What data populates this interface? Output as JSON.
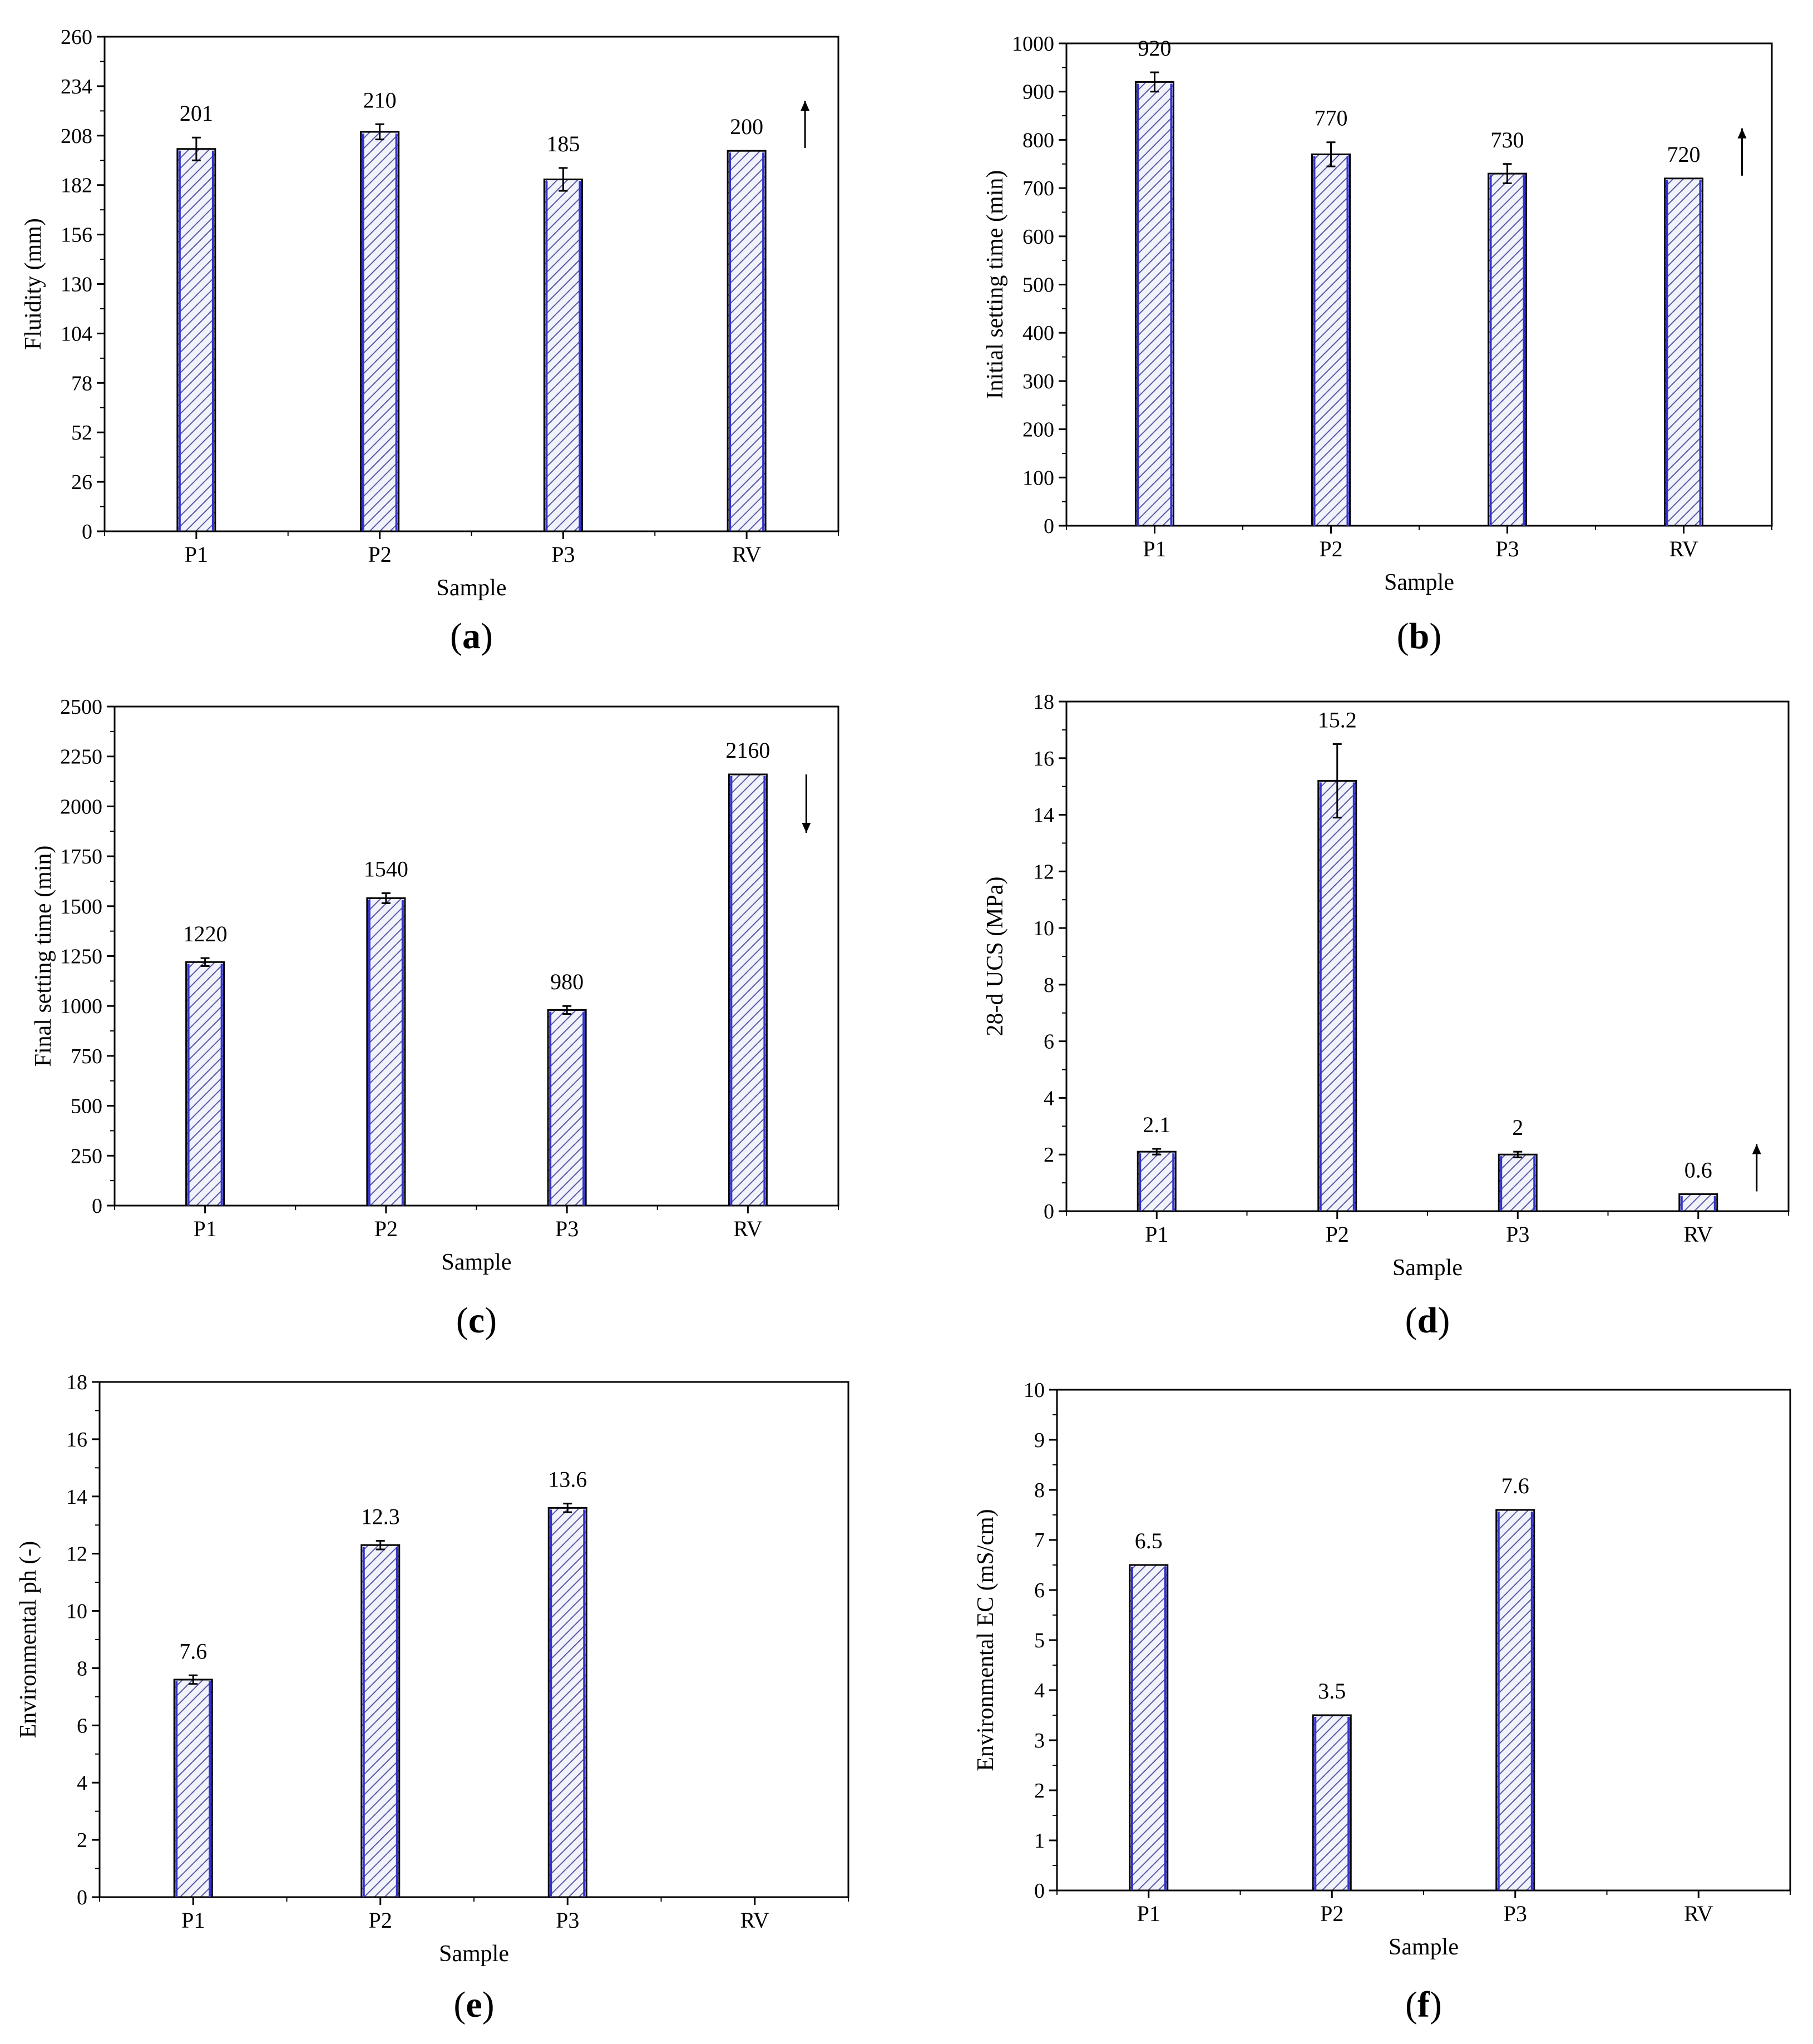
{
  "figure": {
    "colors": {
      "bar_fill": "#f2f3fa",
      "bar_stroke": "#000000",
      "hatch": "#5a5aa8",
      "edge_blue": "#3333cc",
      "axis": "#000000"
    },
    "chart_data": [
      {
        "id": "a",
        "type": "bar",
        "panel_label": "a",
        "xlabel": "Sample",
        "ylabel": "Fluidity (mm)",
        "categories": [
          "P1",
          "P2",
          "P3",
          "RV"
        ],
        "values": [
          201,
          210,
          185,
          200
        ],
        "errors": [
          6,
          4,
          6,
          0
        ],
        "value_labels": [
          "201",
          "210",
          "185",
          "200"
        ],
        "ylim": [
          0,
          260
        ],
        "yticks": [
          0,
          26,
          52,
          78,
          104,
          130,
          156,
          182,
          208,
          234,
          260
        ],
        "arrow": "up"
      },
      {
        "id": "b",
        "type": "bar",
        "panel_label": "b",
        "xlabel": "Sample",
        "ylabel": "Initial setting time (min)",
        "categories": [
          "P1",
          "P2",
          "P3",
          "RV"
        ],
        "values": [
          920,
          770,
          730,
          720
        ],
        "errors": [
          20,
          25,
          20,
          0
        ],
        "value_labels": [
          "920",
          "770",
          "730",
          "720"
        ],
        "ylim": [
          0,
          1000
        ],
        "yticks": [
          0,
          100,
          200,
          300,
          400,
          500,
          600,
          700,
          800,
          900,
          1000
        ],
        "arrow": "up"
      },
      {
        "id": "c",
        "type": "bar",
        "panel_label": "c",
        "xlabel": "Sample",
        "ylabel": "Final setting time (min)",
        "categories": [
          "P1",
          "P2",
          "P3",
          "RV"
        ],
        "values": [
          1220,
          1540,
          980,
          2160
        ],
        "errors": [
          20,
          25,
          20,
          0
        ],
        "value_labels": [
          "1220",
          "1540",
          "980",
          "2160"
        ],
        "ylim": [
          0,
          2500
        ],
        "yticks": [
          0,
          250,
          500,
          750,
          1000,
          1250,
          1500,
          1750,
          2000,
          2250,
          2500
        ],
        "arrow": "down"
      },
      {
        "id": "d",
        "type": "bar",
        "panel_label": "d",
        "xlabel": "Sample",
        "ylabel": "28-d UCS (MPa)",
        "categories": [
          "P1",
          "P2",
          "P3",
          "RV"
        ],
        "values": [
          2.1,
          15.2,
          2,
          0.6
        ],
        "errors": [
          0.1,
          1.3,
          0.1,
          0
        ],
        "value_labels": [
          "2.1",
          "15.2",
          "2",
          "0.6"
        ],
        "ylim": [
          0,
          18
        ],
        "yticks": [
          0,
          2,
          4,
          6,
          8,
          10,
          12,
          14,
          16,
          18
        ],
        "arrow": "up"
      },
      {
        "id": "e",
        "type": "bar",
        "panel_label": "e",
        "xlabel": "Sample",
        "ylabel": "Environmental ph (-)",
        "categories": [
          "P1",
          "P2",
          "P3",
          "RV"
        ],
        "values": [
          7.6,
          12.3,
          13.6,
          null
        ],
        "errors": [
          0.15,
          0.15,
          0.15,
          0
        ],
        "value_labels": [
          "7.6",
          "12.3",
          "13.6",
          null
        ],
        "ylim": [
          0,
          18
        ],
        "yticks": [
          0,
          2,
          4,
          6,
          8,
          10,
          12,
          14,
          16,
          18
        ],
        "arrow": null
      },
      {
        "id": "f",
        "type": "bar",
        "panel_label": "f",
        "xlabel": "Sample",
        "ylabel": "Environmental EC (mS/cm)",
        "categories": [
          "P1",
          "P2",
          "P3",
          "RV"
        ],
        "values": [
          6.5,
          3.5,
          7.6,
          null
        ],
        "errors": [
          0,
          0,
          0,
          0
        ],
        "value_labels": [
          "6.5",
          "3.5",
          "7.6",
          null
        ],
        "ylim": [
          0,
          10
        ],
        "yticks": [
          0,
          1,
          2,
          3,
          4,
          5,
          6,
          7,
          8,
          9,
          10
        ],
        "arrow": null
      }
    ]
  }
}
